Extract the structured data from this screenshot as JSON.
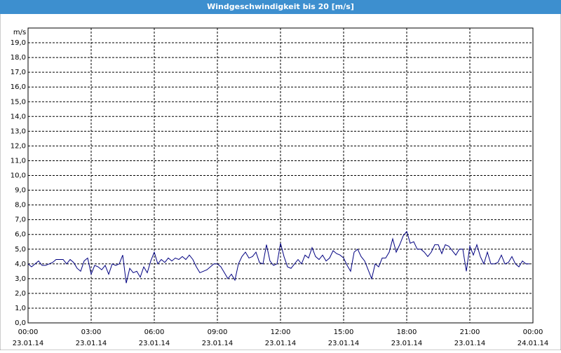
{
  "chart_data": {
    "type": "line",
    "title": "Windgeschwindigkeit bis 20 [m/s]",
    "y_label": "m/s",
    "x": [
      0,
      10,
      20,
      30,
      40,
      50,
      60,
      70,
      80,
      90,
      100,
      110,
      120,
      130,
      140,
      150,
      160,
      170,
      180,
      190,
      200,
      210,
      220,
      230,
      240,
      250,
      260,
      270,
      280,
      290,
      300,
      310,
      320,
      330,
      340,
      350,
      360,
      370,
      380,
      390,
      400,
      410,
      420,
      430,
      440,
      450,
      460,
      470,
      480,
      490,
      500,
      510,
      520,
      530,
      540,
      550,
      560,
      570,
      580,
      590,
      600,
      610,
      620,
      630,
      640,
      650,
      660,
      670,
      680,
      690,
      700,
      710,
      720,
      730,
      740,
      750,
      760,
      770,
      780,
      790,
      800,
      810,
      820,
      830,
      840,
      850,
      860,
      870,
      880,
      890,
      900,
      910,
      920,
      930,
      940,
      950,
      960,
      970,
      980,
      990,
      1000,
      1010,
      1020,
      1030,
      1040,
      1050,
      1060,
      1070,
      1080,
      1090,
      1100,
      1110,
      1120,
      1130,
      1140,
      1150,
      1160,
      1170,
      1180,
      1190,
      1200,
      1210,
      1220,
      1230,
      1240,
      1250,
      1260,
      1270,
      1280,
      1290,
      1300,
      1310,
      1320,
      1330,
      1340,
      1350,
      1360,
      1370,
      1380,
      1390,
      1400,
      1410,
      1420,
      1430
    ],
    "series": [
      {
        "color": "#000080",
        "values": [
          4.0,
          3.8,
          4.0,
          4.2,
          3.9,
          3.9,
          4.0,
          4.1,
          4.3,
          4.3,
          4.3,
          4.0,
          4.3,
          4.1,
          3.7,
          3.5,
          4.2,
          4.4,
          3.3,
          3.9,
          3.8,
          3.6,
          3.9,
          3.3,
          4.0,
          3.9,
          4.0,
          4.6,
          2.7,
          3.7,
          3.4,
          3.5,
          3.1,
          3.8,
          3.4,
          4.2,
          4.8,
          4.0,
          4.3,
          4.1,
          4.4,
          4.2,
          4.4,
          4.3,
          4.5,
          4.3,
          4.6,
          4.3,
          3.8,
          3.4,
          3.5,
          3.6,
          3.8,
          4.0,
          4.0,
          3.8,
          3.4,
          3.0,
          3.3,
          2.9,
          4.0,
          4.5,
          4.8,
          4.4,
          4.5,
          4.8,
          4.1,
          4.0,
          5.3,
          4.2,
          3.9,
          4.0,
          5.4,
          4.5,
          3.8,
          3.7,
          4.0,
          4.3,
          4.0,
          4.6,
          4.4,
          5.1,
          4.5,
          4.3,
          4.6,
          4.2,
          4.4,
          4.9,
          4.7,
          4.6,
          4.4,
          3.9,
          3.5,
          4.8,
          5.0,
          4.5,
          4.2,
          3.6,
          3.0,
          4.0,
          3.8,
          4.4,
          4.4,
          4.8,
          5.7,
          4.8,
          5.3,
          5.9,
          6.2,
          5.4,
          5.5,
          5.0,
          5.0,
          4.8,
          4.5,
          4.8,
          5.3,
          5.3,
          4.7,
          5.3,
          5.2,
          4.9,
          4.6,
          5.0,
          5.0,
          3.5,
          5.2,
          4.6,
          5.3,
          4.5,
          4.0,
          4.8,
          4.0,
          4.0,
          4.1,
          4.6,
          4.0,
          4.1,
          4.5,
          4.0,
          3.8,
          4.2,
          4.0,
          4.0
        ]
      }
    ],
    "xlim": [
      0,
      1440
    ],
    "xticks": [
      {
        "value": 0,
        "label": "00:00",
        "date": "23.01.14"
      },
      {
        "value": 180,
        "label": "03:00",
        "date": "23.01.14"
      },
      {
        "value": 360,
        "label": "06:00",
        "date": "23.01.14"
      },
      {
        "value": 540,
        "label": "09:00",
        "date": "23.01.14"
      },
      {
        "value": 720,
        "label": "12:00",
        "date": "23.01.14"
      },
      {
        "value": 900,
        "label": "15:00",
        "date": "23.01.14"
      },
      {
        "value": 1080,
        "label": "18:00",
        "date": "23.01.14"
      },
      {
        "value": 1260,
        "label": "21:00",
        "date": "23.01.14"
      },
      {
        "value": 1440,
        "label": "00:00",
        "date": "24.01.14"
      }
    ],
    "ylim": [
      0,
      20
    ],
    "yticks": [
      {
        "value": 0,
        "label": "0,0"
      },
      {
        "value": 1,
        "label": "1,0"
      },
      {
        "value": 2,
        "label": "2,0"
      },
      {
        "value": 3,
        "label": "3,0"
      },
      {
        "value": 4,
        "label": "4,0"
      },
      {
        "value": 5,
        "label": "5,0"
      },
      {
        "value": 6,
        "label": "6,0"
      },
      {
        "value": 7,
        "label": "7,0"
      },
      {
        "value": 8,
        "label": "8,0"
      },
      {
        "value": 9,
        "label": "9,0"
      },
      {
        "value": 10,
        "label": "10,0"
      },
      {
        "value": 11,
        "label": "11,0"
      },
      {
        "value": 12,
        "label": "12,0"
      },
      {
        "value": 13,
        "label": "13,0"
      },
      {
        "value": 14,
        "label": "14,0"
      },
      {
        "value": 15,
        "label": "15,0"
      },
      {
        "value": 16,
        "label": "16,0"
      },
      {
        "value": 17,
        "label": "17,0"
      },
      {
        "value": 18,
        "label": "18,0"
      },
      {
        "value": 19,
        "label": "19,0"
      }
    ],
    "grid": true
  }
}
